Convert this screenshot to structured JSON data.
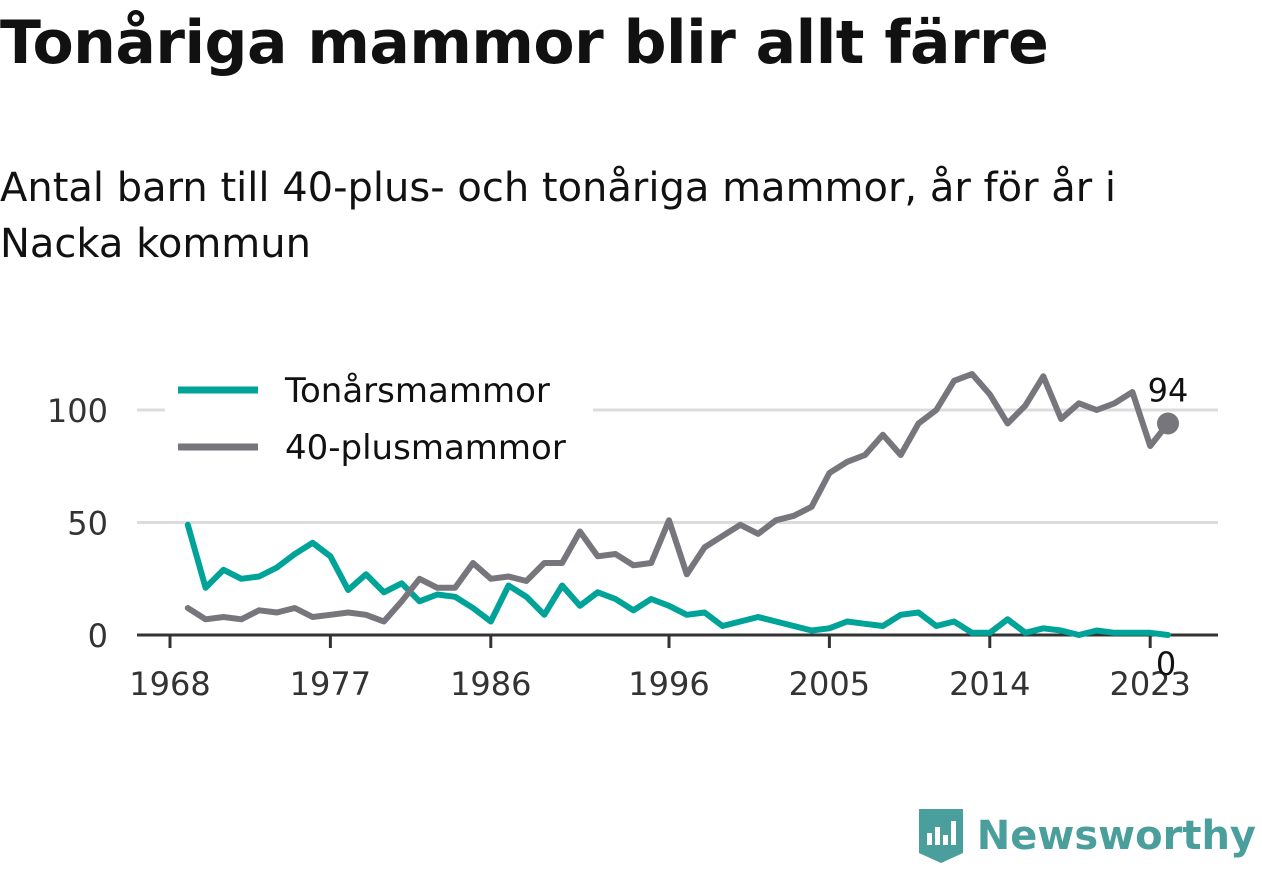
{
  "title": "Tonåriga mammor blir allt färre",
  "subtitle": "Antal barn till 40-plus- och tonåriga mammor, år för år i Nacka kommun",
  "brand": {
    "name": "Newsworthy",
    "color": "#4a9e9b",
    "icon": "newsworthy-logo-icon"
  },
  "chart_data": {
    "type": "line",
    "x": [
      1969,
      1970,
      1971,
      1972,
      1973,
      1974,
      1975,
      1976,
      1977,
      1978,
      1979,
      1980,
      1981,
      1982,
      1983,
      1984,
      1985,
      1986,
      1987,
      1988,
      1989,
      1990,
      1991,
      1992,
      1993,
      1994,
      1995,
      1996,
      1997,
      1998,
      1999,
      2000,
      2001,
      2002,
      2003,
      2004,
      2005,
      2006,
      2007,
      2008,
      2009,
      2010,
      2011,
      2012,
      2013,
      2014,
      2015,
      2016,
      2017,
      2018,
      2019,
      2020,
      2021,
      2022,
      2023,
      2024
    ],
    "series": [
      {
        "name": "Tonårsmammor",
        "color": "#00a398",
        "values": [
          49,
          21,
          29,
          25,
          26,
          30,
          36,
          41,
          35,
          20,
          27,
          19,
          23,
          15,
          18,
          17,
          12,
          6,
          22,
          17,
          9,
          22,
          13,
          19,
          16,
          11,
          16,
          13,
          9,
          10,
          4,
          6,
          8,
          6,
          4,
          2,
          3,
          6,
          5,
          4,
          9,
          10,
          4,
          6,
          1,
          1,
          7,
          1,
          3,
          2,
          0,
          2,
          1,
          1,
          1,
          0
        ]
      },
      {
        "name": "40-plusmammor",
        "color": "#76767c",
        "values": [
          12,
          7,
          8,
          7,
          11,
          10,
          12,
          8,
          9,
          10,
          9,
          6,
          15,
          25,
          21,
          21,
          32,
          25,
          26,
          24,
          32,
          32,
          46,
          35,
          36,
          31,
          32,
          51,
          27,
          39,
          44,
          49,
          45,
          51,
          53,
          57,
          72,
          77,
          80,
          89,
          80,
          94,
          100,
          113,
          116,
          107,
          94,
          102,
          115,
          96,
          103,
          100,
          103,
          108,
          84,
          94
        ]
      }
    ],
    "end_labels": [
      "0",
      "94"
    ],
    "x_ticks": [
      "1968",
      "1977",
      "1986",
      "1996",
      "2005",
      "2014",
      "2023"
    ],
    "y_ticks": [
      "0",
      "50",
      "100"
    ],
    "ylim": [
      0,
      120
    ],
    "grid": true,
    "legend": "top-left"
  }
}
